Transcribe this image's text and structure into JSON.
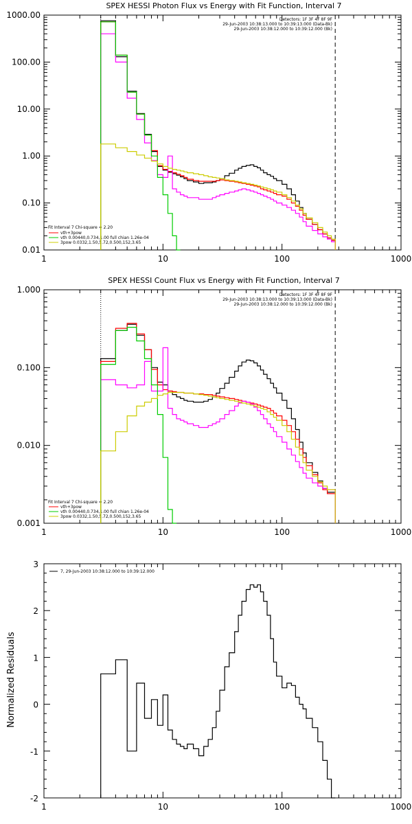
{
  "chart_data": [
    {
      "type": "line",
      "step": true,
      "title": "SPEX HESSI Photon Flux vs Energy with Fit Function, Interval 7",
      "xscale": "log",
      "yscale": "log",
      "xlim": [
        1,
        1000
      ],
      "ylim": [
        0.01,
        1000
      ],
      "x_ticks": [
        "1",
        "10",
        "100",
        "1000"
      ],
      "y_ticks": [
        "0.01",
        "0.10",
        "1.00",
        "10.00",
        "100.00",
        "1000.00"
      ],
      "info_lines": [
        "Detectors: 1F 3F 4F 8F 9F",
        "29-Jun-2003 10:38:13.000 to 10:39:13.000 (Data-Bk)",
        "29-Jun-2003 10:38:12.000 to 10:39:12.000 (Bk)"
      ],
      "legend_lines": [
        "Fit Interval 7   Chi-square = 2.20",
        "vth+3pow",
        "vth 0.00440,0.734,1.00  full chian 1.26e-04",
        "3pow 0.0332,1.50,5.72,0.500,152,3.65"
      ],
      "vlines": [
        {
          "x": 3,
          "style": "dotted"
        },
        {
          "x": 280,
          "style": "dashed"
        }
      ],
      "bin_edges": [
        3,
        3.5,
        4,
        4.5,
        5,
        5.5,
        6,
        6.5,
        7,
        7.5,
        8,
        9,
        10,
        11,
        12,
        13,
        14,
        15,
        16,
        18,
        20,
        22,
        24,
        26,
        28,
        30,
        33,
        36,
        40,
        43,
        46,
        50,
        54,
        58,
        62,
        66,
        70,
        75,
        80,
        85,
        90,
        100,
        110,
        120,
        130,
        140,
        150,
        160,
        180,
        200,
        220,
        240,
        260,
        280
      ],
      "series": [
        {
          "color": "#000000",
          "values": [
            760,
            760,
            130,
            130,
            24,
            24,
            8,
            8,
            2.9,
            2.9,
            1.25,
            0.6,
            0.5,
            0.45,
            0.42,
            0.39,
            0.36,
            0.33,
            0.3,
            0.28,
            0.26,
            0.27,
            0.27,
            0.28,
            0.3,
            0.33,
            0.38,
            0.43,
            0.5,
            0.55,
            0.6,
            0.63,
            0.65,
            0.6,
            0.56,
            0.5,
            0.44,
            0.4,
            0.37,
            0.33,
            0.3,
            0.25,
            0.2,
            0.15,
            0.11,
            0.08,
            0.06,
            0.045,
            0.035,
            0.027,
            0.022,
            0.018,
            0.016
          ]
        },
        {
          "color": "#ff0000",
          "values": [
            720,
            720,
            140,
            140,
            23,
            23,
            7.8,
            7.8,
            2.8,
            2.8,
            1.3,
            0.62,
            0.52,
            0.47,
            0.44,
            0.41,
            0.38,
            0.35,
            0.32,
            0.3,
            0.29,
            0.29,
            0.29,
            0.29,
            0.3,
            0.31,
            0.3,
            0.29,
            0.28,
            0.27,
            0.26,
            0.25,
            0.24,
            0.23,
            0.22,
            0.2,
            0.19,
            0.18,
            0.17,
            0.16,
            0.15,
            0.14,
            0.12,
            0.1,
            0.085,
            0.07,
            0.055,
            0.045,
            0.035,
            0.027,
            0.022,
            0.018,
            0.016
          ]
        },
        {
          "color": "#ff00ff",
          "values": [
            400,
            400,
            100,
            100,
            17,
            17,
            6,
            6,
            1.9,
            1.9,
            0.8,
            0.4,
            0.35,
            1.0,
            0.2,
            0.17,
            0.15,
            0.14,
            0.13,
            0.13,
            0.12,
            0.12,
            0.12,
            0.13,
            0.14,
            0.15,
            0.16,
            0.17,
            0.18,
            0.19,
            0.2,
            0.19,
            0.18,
            0.17,
            0.16,
            0.15,
            0.14,
            0.13,
            0.12,
            0.11,
            0.1,
            0.09,
            0.08,
            0.07,
            0.06,
            0.05,
            0.04,
            0.032,
            0.026,
            0.022,
            0.019,
            0.017,
            0.015
          ]
        },
        {
          "color": "#00cc00",
          "values": [
            720,
            720,
            140,
            140,
            23,
            23,
            7.8,
            7.8,
            2.8,
            2.8,
            1.0,
            0.35,
            0.15,
            0.06,
            0.02,
            0.01
          ]
        },
        {
          "color": "#cccc00",
          "values": [
            1.8,
            1.8,
            1.5,
            1.5,
            1.25,
            1.25,
            1.05,
            1.05,
            0.9,
            0.9,
            0.78,
            0.68,
            0.6,
            0.55,
            0.52,
            0.5,
            0.48,
            0.46,
            0.44,
            0.42,
            0.4,
            0.38,
            0.36,
            0.35,
            0.34,
            0.33,
            0.31,
            0.3,
            0.29,
            0.28,
            0.27,
            0.26,
            0.25,
            0.24,
            0.23,
            0.22,
            0.21,
            0.2,
            0.19,
            0.18,
            0.17,
            0.15,
            0.13,
            0.11,
            0.09,
            0.075,
            0.06,
            0.048,
            0.038,
            0.03,
            0.024,
            0.02,
            0.017
          ]
        }
      ]
    },
    {
      "type": "line",
      "step": true,
      "title": "SPEX HESSI Count Flux vs Energy with Fit Function, Interval 7",
      "xscale": "log",
      "yscale": "log",
      "xlim": [
        1,
        1000
      ],
      "ylim": [
        0.001,
        1.0
      ],
      "x_ticks": [
        "1",
        "10",
        "100",
        "1000"
      ],
      "y_ticks": [
        "0.001",
        "0.010",
        "0.100",
        "1.000"
      ],
      "info_lines": [
        "Detectors: 1F 3F 4F 8F 9F",
        "29-Jun-2003 10:38:13.000 to 10:39:13.000 (Data-Bk)",
        "29-Jun-2003 10:38:12.000 to 10:39:12.000 (Bk)"
      ],
      "legend_lines": [
        "Fit Interval 7   Chi-square = 2.20",
        "vth+3pow",
        "vth 0.00440,0.734,1.00  full chian 1.26e-04",
        "3pow 0.0332,1.50,5.72,0.500,152,3.65"
      ],
      "vlines": [
        {
          "x": 3,
          "style": "dotted"
        },
        {
          "x": 280,
          "style": "dashed"
        }
      ],
      "bin_edges": [
        3,
        3.5,
        4,
        4.5,
        5,
        5.5,
        6,
        6.5,
        7,
        7.5,
        8,
        9,
        10,
        11,
        12,
        13,
        14,
        15,
        16,
        18,
        20,
        22,
        24,
        26,
        28,
        30,
        33,
        36,
        40,
        43,
        46,
        50,
        54,
        58,
        62,
        66,
        70,
        75,
        80,
        85,
        90,
        100,
        110,
        120,
        130,
        140,
        150,
        160,
        180,
        200,
        220,
        240,
        260,
        280
      ],
      "series": [
        {
          "color": "#000000",
          "values": [
            0.13,
            0.13,
            0.3,
            0.3,
            0.36,
            0.36,
            0.26,
            0.26,
            0.17,
            0.17,
            0.1,
            0.065,
            0.06,
            0.05,
            0.045,
            0.042,
            0.04,
            0.038,
            0.037,
            0.036,
            0.036,
            0.037,
            0.039,
            0.042,
            0.047,
            0.054,
            0.063,
            0.075,
            0.09,
            0.105,
            0.118,
            0.125,
            0.122,
            0.115,
            0.105,
            0.093,
            0.082,
            0.072,
            0.063,
            0.055,
            0.047,
            0.038,
            0.03,
            0.022,
            0.016,
            0.011,
            0.008,
            0.006,
            0.0045,
            0.0035,
            0.0028,
            0.0025,
            0.0025
          ]
        },
        {
          "color": "#ff0000",
          "values": [
            0.12,
            0.12,
            0.32,
            0.32,
            0.37,
            0.37,
            0.27,
            0.27,
            0.17,
            0.17,
            0.095,
            0.06,
            0.052,
            0.05,
            0.049,
            0.048,
            0.048,
            0.047,
            0.047,
            0.046,
            0.046,
            0.045,
            0.045,
            0.044,
            0.043,
            0.042,
            0.041,
            0.04,
            0.039,
            0.038,
            0.037,
            0.036,
            0.035,
            0.034,
            0.033,
            0.032,
            0.031,
            0.03,
            0.028,
            0.026,
            0.024,
            0.021,
            0.018,
            0.015,
            0.012,
            0.009,
            0.007,
            0.0055,
            0.0042,
            0.0033,
            0.0027,
            0.0024,
            0.0024
          ]
        },
        {
          "color": "#ff00ff",
          "values": [
            0.07,
            0.07,
            0.06,
            0.06,
            0.055,
            0.055,
            0.06,
            0.06,
            0.12,
            0.12,
            0.05,
            0.05,
            0.18,
            0.03,
            0.025,
            0.022,
            0.021,
            0.02,
            0.019,
            0.018,
            0.017,
            0.017,
            0.018,
            0.019,
            0.02,
            0.022,
            0.025,
            0.028,
            0.032,
            0.035,
            0.037,
            0.036,
            0.034,
            0.031,
            0.028,
            0.025,
            0.022,
            0.019,
            0.017,
            0.015,
            0.013,
            0.011,
            0.009,
            0.0075,
            0.0062,
            0.0052,
            0.0044,
            0.0038,
            0.0033,
            0.003,
            0.0028,
            0.0027,
            0.0027
          ]
        },
        {
          "color": "#00cc00",
          "values": [
            0.11,
            0.11,
            0.3,
            0.3,
            0.33,
            0.33,
            0.22,
            0.22,
            0.13,
            0.13,
            0.06,
            0.025,
            0.007,
            0.0015,
            0.001
          ]
        },
        {
          "color": "#cccc00",
          "values": [
            0.0085,
            0.0085,
            0.015,
            0.015,
            0.024,
            0.024,
            0.032,
            0.032,
            0.036,
            0.036,
            0.04,
            0.044,
            0.046,
            0.048,
            0.048,
            0.048,
            0.048,
            0.047,
            0.047,
            0.046,
            0.045,
            0.044,
            0.043,
            0.042,
            0.041,
            0.04,
            0.039,
            0.038,
            0.037,
            0.036,
            0.035,
            0.034,
            0.033,
            0.032,
            0.031,
            0.03,
            0.029,
            0.027,
            0.025,
            0.023,
            0.021,
            0.018,
            0.015,
            0.012,
            0.0095,
            0.0075,
            0.006,
            0.0048,
            0.004,
            0.0034,
            0.003,
            0.0027,
            0.0027
          ]
        }
      ]
    },
    {
      "type": "line",
      "step": true,
      "title": "",
      "ylabel": "Normalized Residuals",
      "xscale": "log",
      "yscale": "linear",
      "xlim": [
        1,
        1000
      ],
      "ylim": [
        -2,
        3
      ],
      "x_ticks": [
        "1",
        "10",
        "100",
        "1000"
      ],
      "y_ticks": [
        "-2",
        "-1",
        "0",
        "1",
        "2",
        "3"
      ],
      "legend_lines": [
        "7, 29-Jun-2003 10:38:12.000 to 10:39:12.000"
      ],
      "bin_edges": [
        3,
        3.5,
        4,
        4.5,
        5,
        5.5,
        6,
        6.5,
        7,
        7.5,
        8,
        9,
        10,
        11,
        12,
        13,
        14,
        15,
        16,
        18,
        20,
        22,
        24,
        26,
        28,
        30,
        33,
        36,
        40,
        43,
        46,
        50,
        54,
        58,
        62,
        66,
        70,
        75,
        80,
        85,
        90,
        100,
        110,
        120,
        130,
        140,
        150,
        160,
        180,
        200,
        220,
        240,
        260,
        280
      ],
      "series": [
        {
          "color": "#000000",
          "values": [
            0.65,
            0.65,
            0.95,
            0.95,
            -1.0,
            -1.0,
            0.45,
            0.45,
            -0.3,
            -0.3,
            0.1,
            -0.45,
            0.2,
            -0.55,
            -0.75,
            -0.85,
            -0.9,
            -0.95,
            -0.85,
            -0.95,
            -1.1,
            -0.9,
            -0.75,
            -0.5,
            -0.15,
            0.3,
            0.8,
            1.1,
            1.55,
            1.9,
            2.2,
            2.45,
            2.55,
            2.5,
            2.55,
            2.4,
            2.2,
            1.9,
            1.4,
            0.9,
            0.6,
            0.35,
            0.45,
            0.4,
            0.15,
            0.0,
            -0.1,
            -0.3,
            -0.5,
            -0.8,
            -1.2,
            -1.6,
            -2.0
          ]
        }
      ]
    }
  ]
}
